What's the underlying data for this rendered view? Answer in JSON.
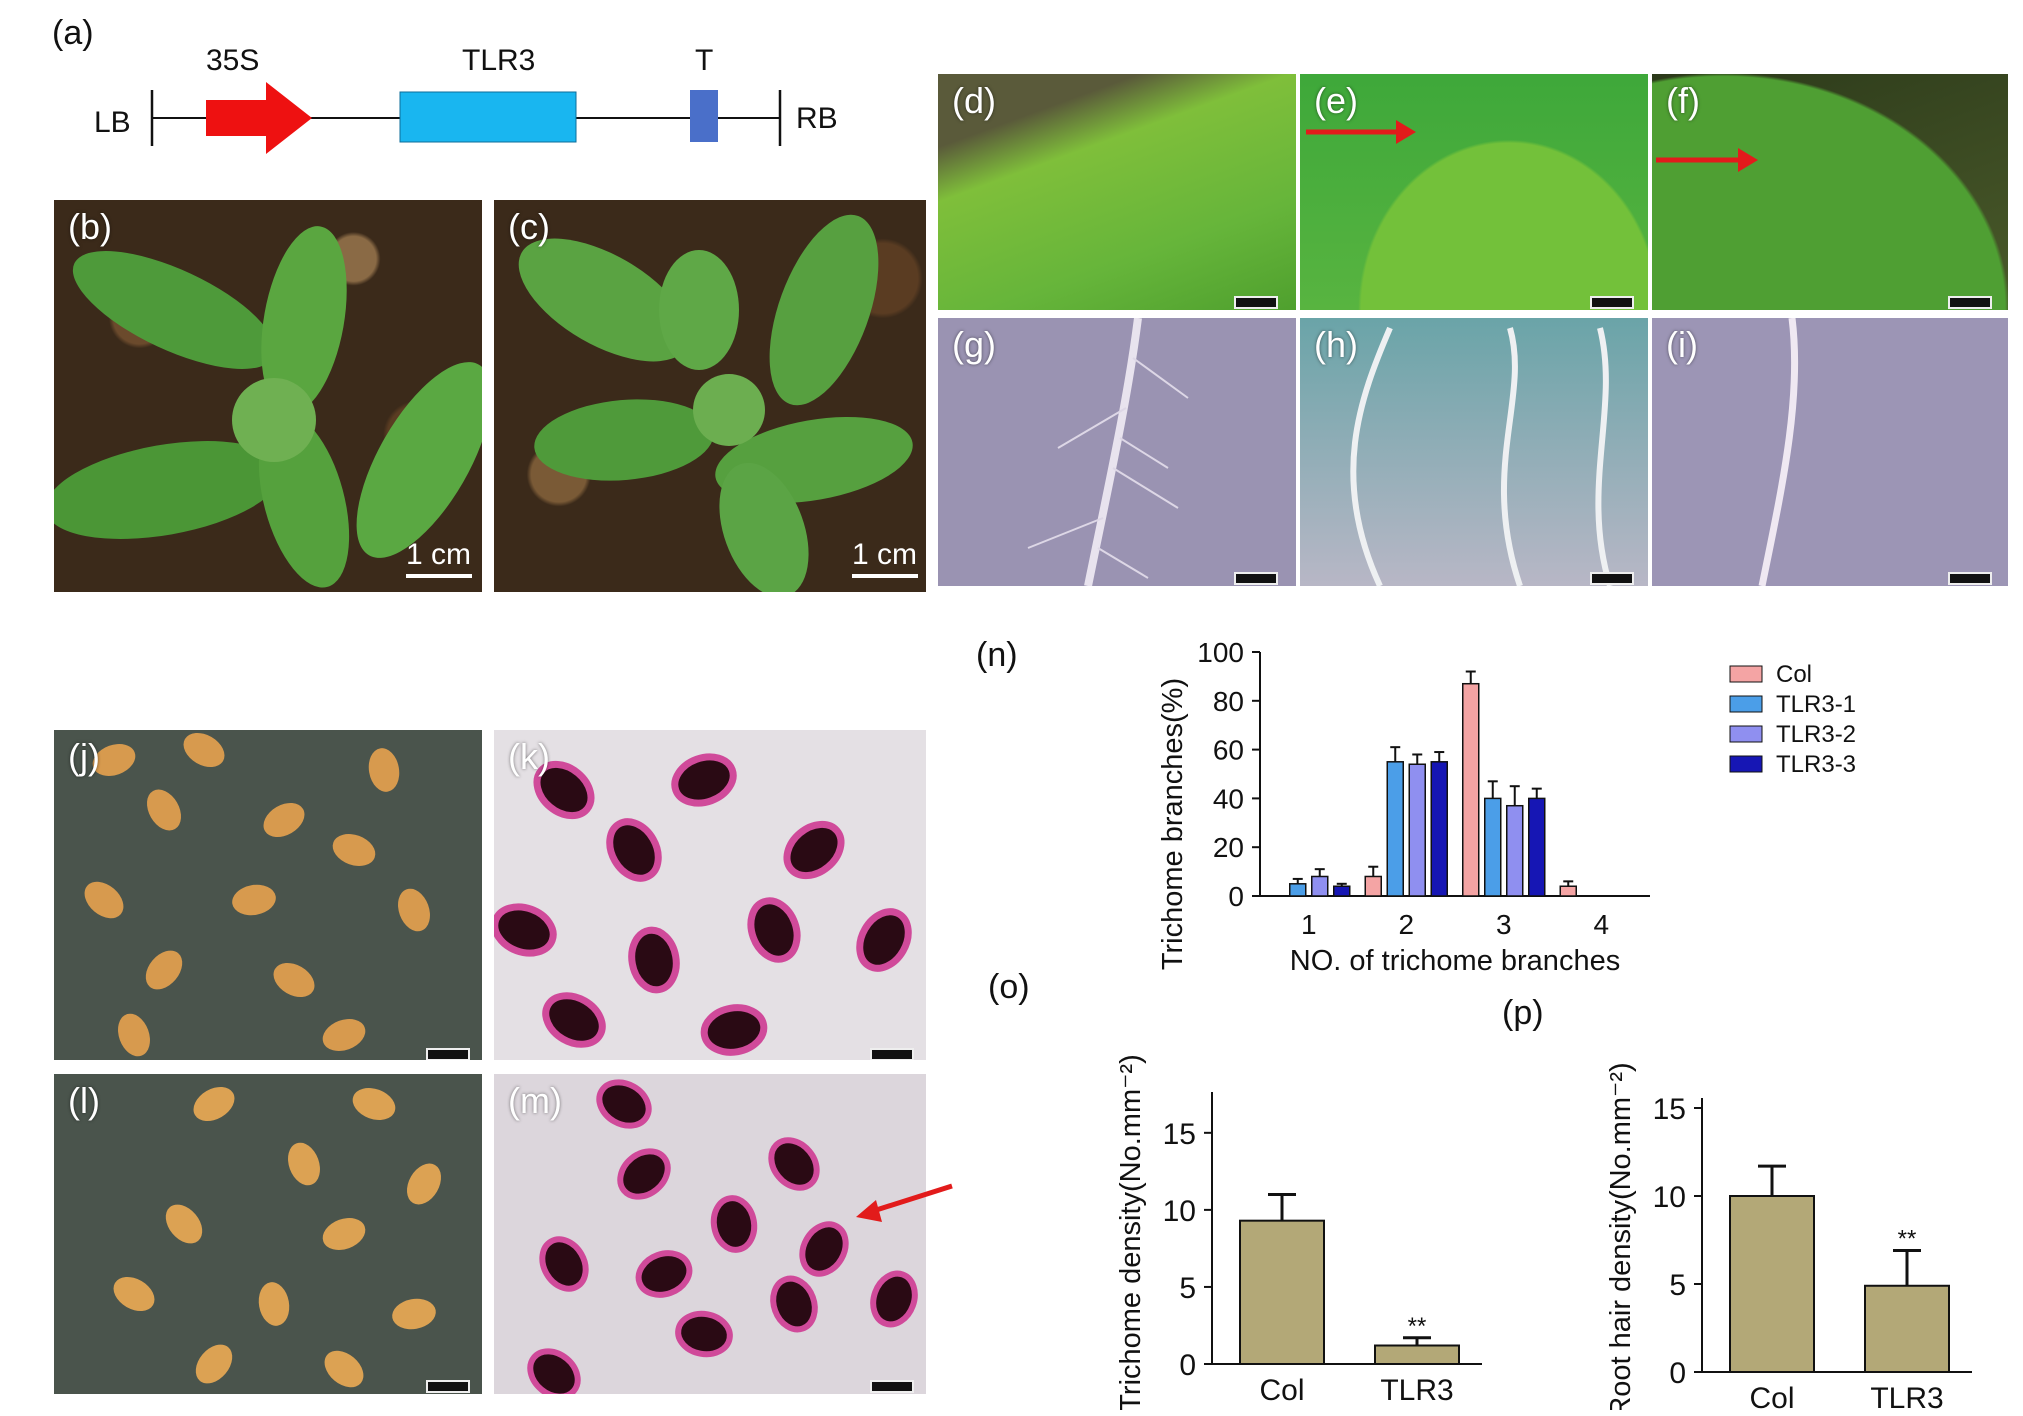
{
  "panels": {
    "a": "(a)",
    "b": "(b)",
    "c": "(c)",
    "d": "(d)",
    "e": "(e)",
    "f": "(f)",
    "g": "(g)",
    "h": "(h)",
    "i": "(i)",
    "j": "(j)",
    "k": "(k)",
    "l": "(l)",
    "m": "(m)",
    "n": "(n)",
    "o": "(o)",
    "p": "(p)"
  },
  "construct": {
    "lb": "LB",
    "rb": "RB",
    "promoter": "35S",
    "gene": "TLR3",
    "terminator": "T",
    "colors": {
      "promoter": "#ee1111",
      "gene": "#19b6f0",
      "terminator": "#4a6fc9"
    }
  },
  "scale_bars": {
    "b": "1 cm",
    "c": "1 cm"
  },
  "chart_data": [
    {
      "id": "n",
      "type": "bar",
      "ylabel": "Trichome branches(%)",
      "xlabel": "NO. of  trichome branches",
      "categories": [
        "1",
        "2",
        "3",
        "4"
      ],
      "ylim": [
        0,
        100
      ],
      "yticks": [
        0,
        20,
        40,
        60,
        80,
        100
      ],
      "legend": "right",
      "series": [
        {
          "name": "Col",
          "color": "#f4a4a4",
          "values": [
            0,
            8,
            87,
            4
          ],
          "errors": [
            0,
            4,
            5,
            2
          ]
        },
        {
          "name": "TLR3-1",
          "color": "#4b9ee8",
          "values": [
            5,
            55,
            40,
            0
          ],
          "errors": [
            2,
            6,
            7,
            0
          ]
        },
        {
          "name": "TLR3-2",
          "color": "#8f8ff0",
          "values": [
            8,
            54,
            37,
            0
          ],
          "errors": [
            3,
            4,
            8,
            0
          ]
        },
        {
          "name": "TLR3-3",
          "color": "#1616b4",
          "values": [
            4,
            55,
            40,
            0
          ],
          "errors": [
            1,
            4,
            4,
            0
          ]
        }
      ]
    },
    {
      "id": "o",
      "type": "bar",
      "ylabel": "Trichome density(No.mm⁻²)",
      "categories": [
        "Col",
        "TLR3"
      ],
      "values": [
        9.3,
        1.2
      ],
      "errors": [
        1.7,
        0.5
      ],
      "ylim": [
        0,
        17
      ],
      "yticks": [
        0,
        5,
        10,
        15
      ],
      "annotations": [
        "",
        "**"
      ],
      "color": "#b3a877"
    },
    {
      "id": "p",
      "type": "bar",
      "ylabel": "Root hair density(No.mm⁻²)",
      "categories": [
        "Col",
        "TLR3"
      ],
      "values": [
        10,
        4.9
      ],
      "errors": [
        1.7,
        2.0
      ],
      "ylim": [
        0,
        15
      ],
      "yticks": [
        0,
        5,
        10,
        15
      ],
      "annotations": [
        "",
        "**"
      ],
      "color": "#b3a877"
    }
  ]
}
